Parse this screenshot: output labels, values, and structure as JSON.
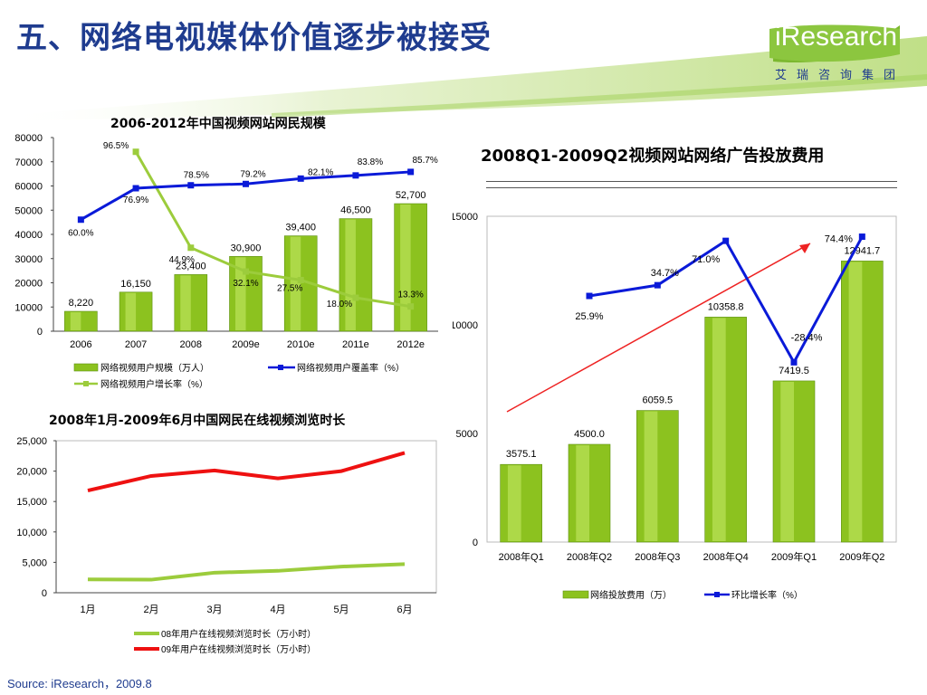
{
  "slide": {
    "title": "五、网络电视媒体价值逐步被接受",
    "source": "Source: iResearch，2009.8",
    "logo": {
      "brand": "iResearch",
      "subtitle": "艾瑞咨询集团"
    }
  },
  "colors": {
    "title": "#1f3c8f",
    "bar": "#8cc21f",
    "line_blue": "#0a1ad8",
    "line_green": "#9ccc3c",
    "line_red": "#ee1111",
    "arrow": "#ee2222"
  },
  "chart_data": [
    {
      "id": "users",
      "type": "bar",
      "title": "2006-2012年中国视频网站网民规模",
      "categories": [
        "2006",
        "2007",
        "2008",
        "2009e",
        "2010e",
        "2011e",
        "2012e"
      ],
      "ylim": [
        0,
        80000
      ],
      "yticks": [
        "0",
        "10000",
        "20000",
        "30000",
        "40000",
        "50000",
        "60000",
        "70000",
        "80000"
      ],
      "series": [
        {
          "name": "网络视频用户规模（万人）",
          "type": "bar",
          "values": [
            8220,
            16150,
            23400,
            30900,
            39400,
            46500,
            52700
          ],
          "labels": [
            "8,220",
            "16,150",
            "23,400",
            "30,900",
            "39,400",
            "46,500",
            "52,700"
          ]
        },
        {
          "name": "网络视频用户覆盖率（%）",
          "type": "line",
          "values": [
            60.0,
            76.9,
            78.5,
            79.2,
            82.1,
            83.8,
            85.7
          ],
          "labels": [
            "60.0%",
            "76.9%",
            "78.5%",
            "79.2%",
            "82.1%",
            "83.8%",
            "85.7%"
          ]
        },
        {
          "name": "网络视频用户增长率（%）",
          "type": "line",
          "values": [
            null,
            96.5,
            44.9,
            32.1,
            27.5,
            18.0,
            13.3
          ],
          "labels": [
            "",
            "96.5%",
            "44.9%",
            "32.1%",
            "27.5%",
            "18.0%",
            "13.3%"
          ]
        }
      ],
      "grid": false
    },
    {
      "id": "adspend",
      "type": "bar",
      "title": "2008Q1-2009Q2视频网站网络广告投放费用",
      "categories": [
        "2008年Q1",
        "2008年Q2",
        "2008年Q3",
        "2008年Q4",
        "2009年Q1",
        "2009年Q2"
      ],
      "ylim": [
        0,
        15000
      ],
      "yticks": [
        "0",
        "5000",
        "10000",
        "15000"
      ],
      "series": [
        {
          "name": "网络投放费用（万）",
          "type": "bar",
          "values": [
            3575.1,
            4500.0,
            6059.5,
            10358.8,
            7419.5,
            12941.7
          ],
          "labels": [
            "3575.1",
            "4500.0",
            "6059.5",
            "10358.8",
            "7419.5",
            "12941.7"
          ]
        },
        {
          "name": "环比增长率（%）",
          "type": "line",
          "values": [
            null,
            25.9,
            34.7,
            71.0,
            -28.4,
            74.4
          ],
          "labels": [
            "",
            "25.9%",
            "34.7%",
            "71.0%",
            "-28.4%",
            "74.4%"
          ]
        }
      ],
      "grid": false
    },
    {
      "id": "duration",
      "type": "line",
      "title": "2008年1月-2009年6月中国网民在线视频浏览时长",
      "categories": [
        "1月",
        "2月",
        "3月",
        "4月",
        "5月",
        "6月"
      ],
      "ylim": [
        0,
        25000
      ],
      "yticks": [
        "0",
        "5,000",
        "10,000",
        "15,000",
        "20,000",
        "25,000"
      ],
      "series": [
        {
          "name": "08年用户在线视频浏览时长（万小时）",
          "values": [
            2200,
            2150,
            3300,
            3600,
            4300,
            4700
          ]
        },
        {
          "name": "09年用户在线视频浏览时长（万小时）",
          "values": [
            16800,
            19200,
            20100,
            18800,
            20000,
            23000
          ]
        }
      ],
      "grid": false
    }
  ]
}
